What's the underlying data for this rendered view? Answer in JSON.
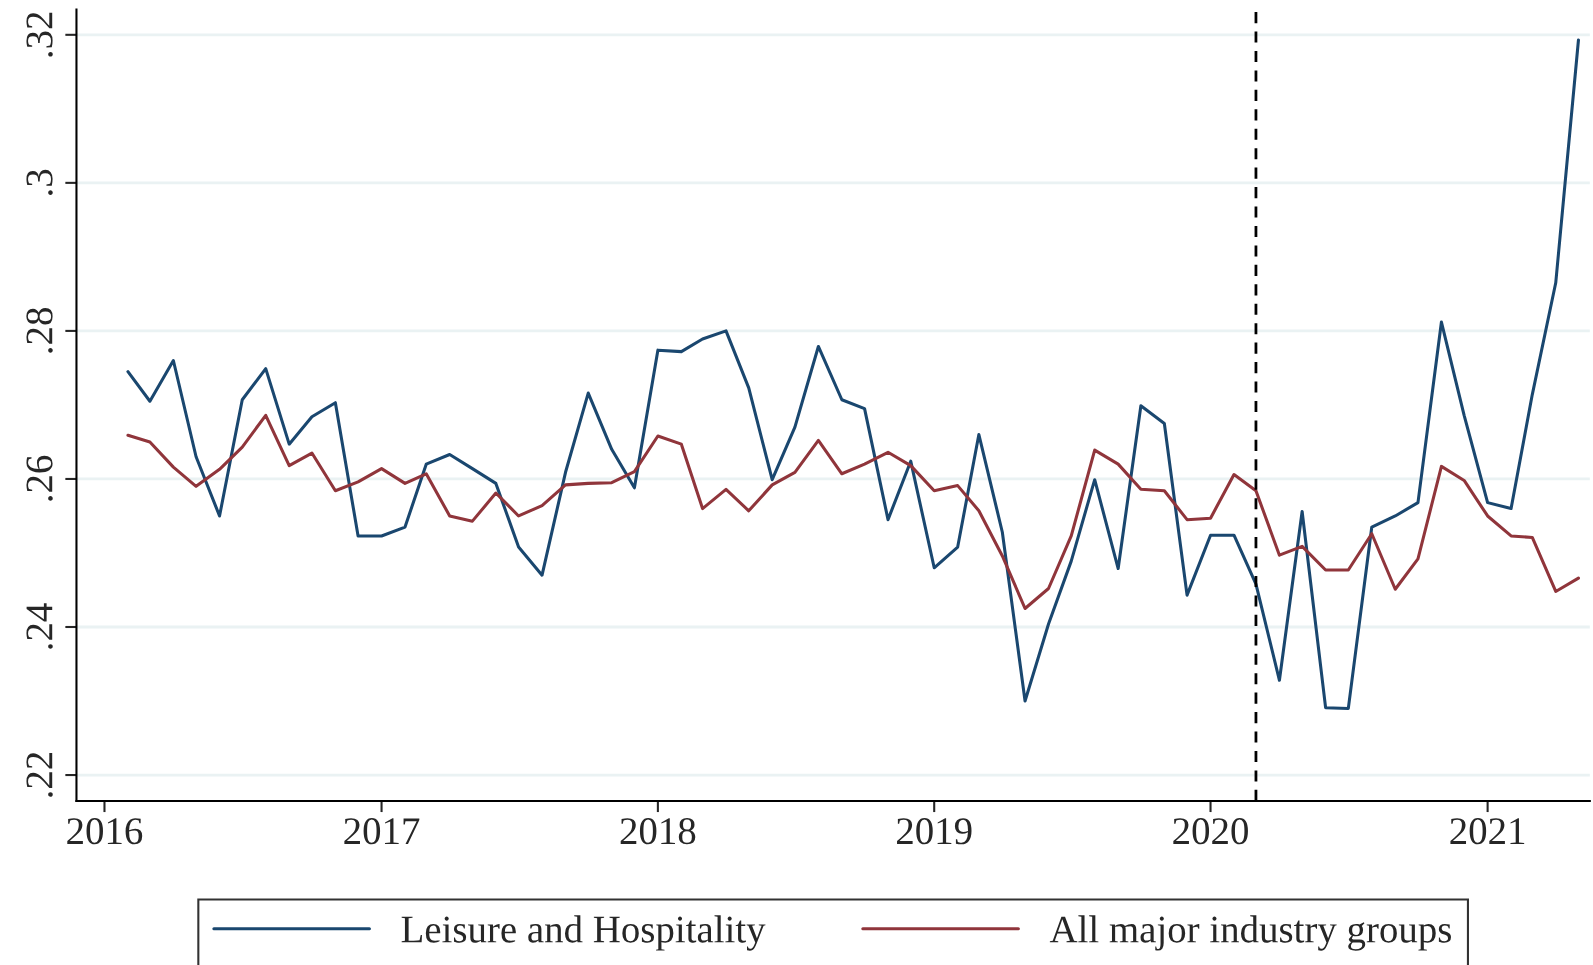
{
  "chart_data": {
    "type": "line",
    "x": [
      "2016-02",
      "2016-03",
      "2016-04",
      "2016-05",
      "2016-06",
      "2016-07",
      "2016-08",
      "2016-09",
      "2016-10",
      "2016-11",
      "2016-12",
      "2017-01",
      "2017-02",
      "2017-03",
      "2017-04",
      "2017-05",
      "2017-06",
      "2017-07",
      "2017-08",
      "2017-09",
      "2017-10",
      "2017-11",
      "2017-12",
      "2018-01",
      "2018-02",
      "2018-03",
      "2018-04",
      "2018-05",
      "2018-06",
      "2018-07",
      "2018-08",
      "2018-09",
      "2018-10",
      "2018-11",
      "2018-12",
      "2019-01",
      "2019-02",
      "2019-03",
      "2019-04",
      "2019-05",
      "2019-06",
      "2019-07",
      "2019-08",
      "2019-09",
      "2019-10",
      "2019-11",
      "2019-12",
      "2020-01",
      "2020-02",
      "2020-03",
      "2020-04",
      "2020-05",
      "2020-06",
      "2020-07",
      "2020-08",
      "2020-09",
      "2020-10",
      "2020-11",
      "2020-12",
      "2021-01",
      "2021-02",
      "2021-03",
      "2021-04",
      "2021-05"
    ],
    "series": [
      {
        "name": "Leisure and Hospitality",
        "color": "#1a476f",
        "values": [
          0.2745,
          0.2705,
          0.276,
          0.263,
          0.255,
          0.2707,
          0.2749,
          0.2647,
          0.2684,
          0.2703,
          0.2523,
          0.2523,
          0.2535,
          0.262,
          0.2633,
          0.2614,
          0.2594,
          0.2508,
          0.247,
          0.2609,
          0.2716,
          0.264,
          0.2588,
          0.2774,
          0.2772,
          0.2789,
          0.28,
          0.2723,
          0.2599,
          0.267,
          0.2779,
          0.2707,
          0.2695,
          0.2545,
          0.2624,
          0.248,
          0.2508,
          0.266,
          0.2528,
          0.23,
          0.2404,
          0.2489,
          0.2599,
          0.2479,
          0.2699,
          0.2675,
          0.2443,
          0.2524,
          0.2524,
          0.2458,
          0.2328,
          0.2556,
          0.2291,
          0.229,
          0.2535,
          0.255,
          0.2568,
          0.2812,
          0.2686,
          0.2568,
          0.256,
          0.2714,
          0.2865,
          0.3193
        ]
      },
      {
        "name": "All major industry groups",
        "color": "#90353b",
        "values": [
          0.2659,
          0.265,
          0.2616,
          0.259,
          0.2613,
          0.2643,
          0.2686,
          0.2618,
          0.2635,
          0.2584,
          0.2596,
          0.2614,
          0.2594,
          0.2607,
          0.255,
          0.2543,
          0.2581,
          0.255,
          0.2564,
          0.2592,
          0.2594,
          0.2595,
          0.261,
          0.2658,
          0.2647,
          0.256,
          0.2586,
          0.2557,
          0.2592,
          0.2609,
          0.2652,
          0.2607,
          0.262,
          0.2636,
          0.2618,
          0.2584,
          0.2591,
          0.2557,
          0.2496,
          0.2425,
          0.2452,
          0.2523,
          0.2639,
          0.262,
          0.2586,
          0.2584,
          0.2545,
          0.2547,
          0.2606,
          0.2584,
          0.2497,
          0.2509,
          0.2477,
          0.2477,
          0.2526,
          0.2451,
          0.2492,
          0.2617,
          0.2598,
          0.255,
          0.2523,
          0.2521,
          0.2448,
          0.2466
        ]
      }
    ],
    "xlim": [
      "2015-11-25",
      "2021-05-16"
    ],
    "xticks": [
      {
        "value": "2016-01-01",
        "label": "2016"
      },
      {
        "value": "2017-01-01",
        "label": "2017"
      },
      {
        "value": "2018-01-01",
        "label": "2018"
      },
      {
        "value": "2019-01-01",
        "label": "2019"
      },
      {
        "value": "2020-01-01",
        "label": "2020"
      },
      {
        "value": "2021-01-01",
        "label": "2021"
      }
    ],
    "ylim": [
      0.2165,
      0.3234
    ],
    "yticks": [
      {
        "value": 0.22,
        "label": ".22"
      },
      {
        "value": 0.24,
        "label": ".24"
      },
      {
        "value": 0.26,
        "label": ".26"
      },
      {
        "value": 0.28,
        "label": ".28"
      },
      {
        "value": 0.3,
        "label": ".3"
      },
      {
        "value": 0.32,
        "label": ".32"
      }
    ],
    "ref_lines": [
      {
        "axis": "x",
        "value": "2020-03-01",
        "color": "#000000",
        "line_style": "dashed"
      }
    ],
    "grid": "y",
    "legend": "bottom",
    "line_style": "solid",
    "marker": "none"
  }
}
